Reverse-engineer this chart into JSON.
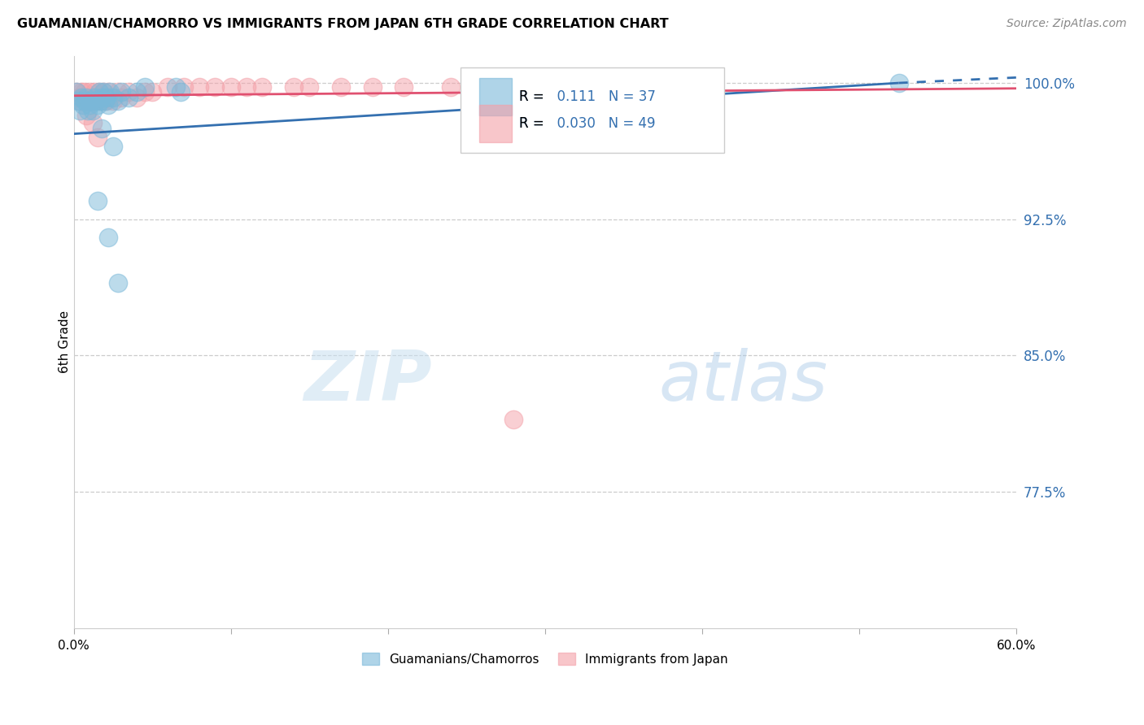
{
  "title": "GUAMANIAN/CHAMORRO VS IMMIGRANTS FROM JAPAN 6TH GRADE CORRELATION CHART",
  "source": "Source: ZipAtlas.com",
  "ylabel": "6th Grade",
  "y_ticks": [
    100.0,
    92.5,
    85.0,
    77.5
  ],
  "y_tick_labels": [
    "100.0%",
    "92.5%",
    "85.0%",
    "77.5%"
  ],
  "xlim": [
    0.0,
    60.0
  ],
  "ylim": [
    70.0,
    101.5
  ],
  "blue_R": 0.111,
  "blue_N": 37,
  "pink_R": 0.03,
  "pink_N": 49,
  "blue_color": "#7ab8d9",
  "pink_color": "#f4a0a8",
  "blue_line_color": "#3470b0",
  "pink_line_color": "#e05070",
  "watermark_zip": "ZIP",
  "watermark_atlas": "atlas",
  "blue_scatter": [
    [
      0.2,
      99.5
    ],
    [
      0.3,
      99.0
    ],
    [
      0.4,
      98.5
    ],
    [
      0.5,
      99.2
    ],
    [
      0.6,
      98.8
    ],
    [
      0.7,
      99.0
    ],
    [
      0.8,
      99.2
    ],
    [
      0.9,
      98.5
    ],
    [
      1.0,
      98.8
    ],
    [
      1.1,
      99.0
    ],
    [
      1.2,
      98.5
    ],
    [
      1.3,
      99.2
    ],
    [
      1.4,
      99.0
    ],
    [
      1.5,
      98.8
    ],
    [
      1.6,
      99.5
    ],
    [
      1.7,
      99.0
    ],
    [
      1.8,
      99.2
    ],
    [
      1.9,
      99.5
    ],
    [
      2.0,
      99.0
    ],
    [
      2.1,
      99.2
    ],
    [
      2.2,
      98.8
    ],
    [
      2.3,
      99.5
    ],
    [
      2.5,
      99.2
    ],
    [
      2.8,
      99.0
    ],
    [
      3.0,
      99.5
    ],
    [
      3.5,
      99.2
    ],
    [
      4.0,
      99.5
    ],
    [
      4.5,
      99.8
    ],
    [
      1.8,
      97.5
    ],
    [
      2.5,
      96.5
    ],
    [
      1.5,
      93.5
    ],
    [
      2.2,
      91.5
    ],
    [
      2.8,
      89.0
    ],
    [
      38.0,
      99.8
    ],
    [
      52.5,
      100.0
    ],
    [
      6.5,
      99.8
    ],
    [
      6.8,
      99.5
    ]
  ],
  "pink_scatter": [
    [
      0.2,
      99.5
    ],
    [
      0.3,
      99.2
    ],
    [
      0.4,
      99.0
    ],
    [
      0.5,
      99.5
    ],
    [
      0.6,
      99.2
    ],
    [
      0.7,
      99.5
    ],
    [
      0.8,
      99.2
    ],
    [
      0.9,
      99.0
    ],
    [
      1.0,
      99.5
    ],
    [
      1.1,
      99.2
    ],
    [
      1.2,
      99.0
    ],
    [
      1.3,
      99.5
    ],
    [
      1.4,
      99.2
    ],
    [
      1.5,
      99.0
    ],
    [
      1.6,
      99.5
    ],
    [
      1.7,
      99.2
    ],
    [
      1.8,
      99.0
    ],
    [
      1.9,
      99.5
    ],
    [
      2.0,
      99.2
    ],
    [
      2.1,
      99.0
    ],
    [
      2.2,
      99.5
    ],
    [
      2.3,
      99.2
    ],
    [
      2.5,
      99.0
    ],
    [
      2.8,
      99.5
    ],
    [
      3.0,
      99.2
    ],
    [
      3.5,
      99.5
    ],
    [
      4.0,
      99.2
    ],
    [
      4.5,
      99.5
    ],
    [
      5.0,
      99.5
    ],
    [
      6.0,
      99.8
    ],
    [
      7.0,
      99.8
    ],
    [
      8.0,
      99.8
    ],
    [
      9.0,
      99.8
    ],
    [
      10.0,
      99.8
    ],
    [
      11.0,
      99.8
    ],
    [
      12.0,
      99.8
    ],
    [
      14.0,
      99.8
    ],
    [
      15.0,
      99.8
    ],
    [
      17.0,
      99.8
    ],
    [
      19.0,
      99.8
    ],
    [
      21.0,
      99.8
    ],
    [
      24.0,
      99.8
    ],
    [
      27.0,
      99.8
    ],
    [
      30.0,
      99.8
    ],
    [
      33.0,
      99.8
    ],
    [
      0.8,
      98.2
    ],
    [
      1.2,
      97.8
    ],
    [
      1.5,
      97.0
    ],
    [
      28.0,
      81.5
    ]
  ],
  "legend_label_blue": "Guamanians/Chamorros",
  "legend_label_pink": "Immigrants from Japan"
}
